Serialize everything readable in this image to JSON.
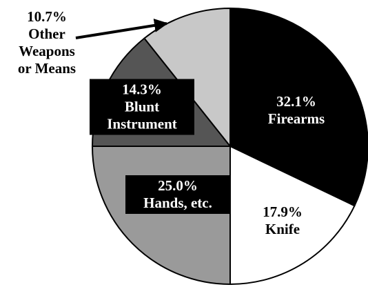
{
  "chart_data": {
    "type": "pie",
    "categories": [
      "Firearms",
      "Knife",
      "Hands, etc.",
      "Blunt Instrument",
      "Other Weapons or Means"
    ],
    "values": [
      32.1,
      17.9,
      25.0,
      14.3,
      10.7
    ],
    "value_labels": [
      "32.1%",
      "17.9%",
      "25.0%",
      "14.3%",
      "10.7%"
    ],
    "colors": [
      "#000000",
      "#ffffff",
      "#9a9a9a",
      "#555555",
      "#c8c8c8"
    ]
  }
}
